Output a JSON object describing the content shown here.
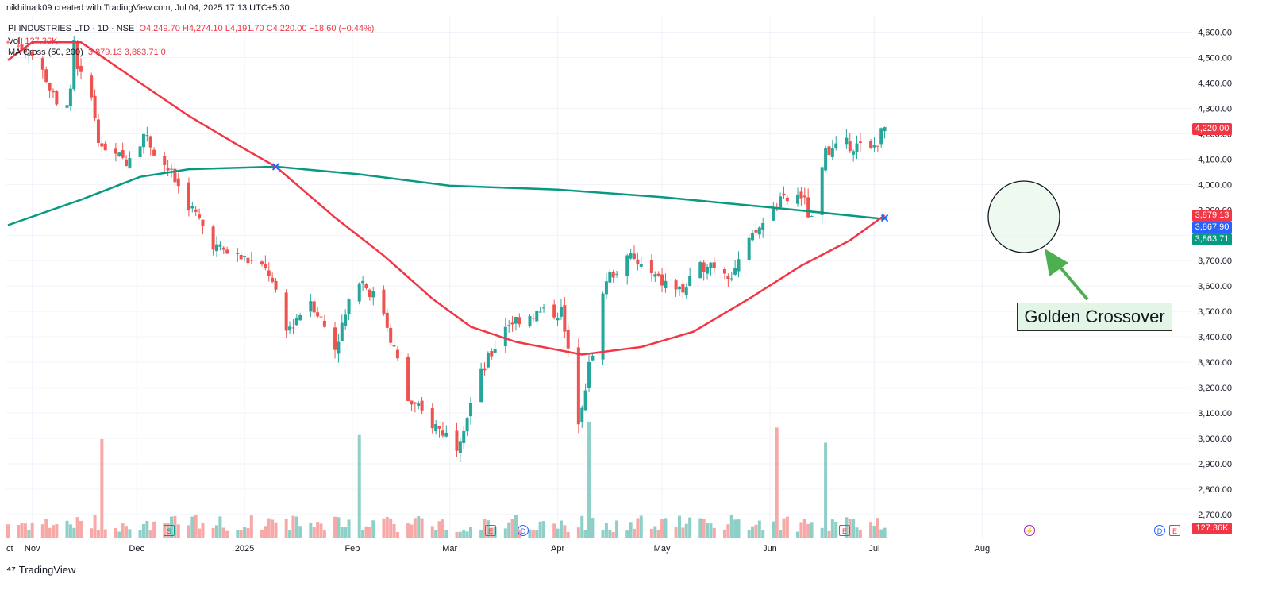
{
  "header": {
    "created_by": "nikhilnaik09 created with TradingView.com, Jul 04, 2025 17:13 UTC+5:30"
  },
  "legend": {
    "symbol": "PI INDUSTRIES LTD · 1D · NSE",
    "ohlc": "O4,249.70 H4,274.10 L4,191.70 C4,220.00 −18.60 (−0.44%)",
    "vol_label": "Vol",
    "vol_value": "127.36K",
    "ma_label": "MA Cross (50, 200)",
    "ma_values": "3,879.13 3,863.71 0"
  },
  "price_tags": {
    "last": "4,220.00",
    "ma50": "3,879.13",
    "cross": "3,867.90",
    "ma200": "3,863.71",
    "volume": "127.36K"
  },
  "annotation": {
    "text": "Golden Crossover"
  },
  "events": {
    "split": "S",
    "earnings": "E",
    "dividend": "D",
    "flash": "⚡"
  },
  "footer": {
    "brand": "TradingView"
  },
  "colors": {
    "up": "#26a69a",
    "down": "#ef5350",
    "ma50": "#f23645",
    "ma200": "#089981",
    "cross": "#2962ff",
    "annotation_arrow": "#4caf50"
  },
  "chart_data": {
    "type": "candlestick",
    "symbol": "PI INDUSTRIES LTD",
    "interval": "1D",
    "exchange": "NSE",
    "ylim": [
      2600,
      4650
    ],
    "y_ticks": [
      "2,700.00",
      "2,800.00",
      "2,900.00",
      "3,000.00",
      "3,100.00",
      "3,200.00",
      "3,300.00",
      "3,400.00",
      "3,500.00",
      "3,600.00",
      "3,700.00",
      "3,800.00",
      "3,900.00",
      "4,000.00",
      "4,100.00",
      "4,200.00",
      "4,300.00",
      "4,400.00",
      "4,500.00",
      "4,600.00"
    ],
    "x_ticks": [
      "ct",
      "Nov",
      "Dec",
      "2025",
      "Feb",
      "Mar",
      "Apr",
      "May",
      "Jun",
      "Jul",
      "Aug"
    ],
    "close_path": [
      {
        "date": "2024-10-25",
        "close": 4560
      },
      {
        "date": "2024-10-31",
        "close": 4530
      },
      {
        "date": "2024-11-05",
        "close": 4420
      },
      {
        "date": "2024-11-08",
        "close": 4300
      },
      {
        "date": "2024-11-12",
        "close": 4350
      },
      {
        "date": "2024-11-13",
        "close": 4550
      },
      {
        "date": "2024-11-14",
        "close": 4440
      },
      {
        "date": "2024-11-18",
        "close": 4340
      },
      {
        "date": "2024-11-21",
        "close": 4120
      },
      {
        "date": "2024-11-28",
        "close": 4100
      },
      {
        "date": "2024-12-03",
        "close": 4200
      },
      {
        "date": "2024-12-10",
        "close": 4060
      },
      {
        "date": "2024-12-17",
        "close": 3900
      },
      {
        "date": "2024-12-24",
        "close": 3750
      },
      {
        "date": "2025-01-02",
        "close": 3700
      },
      {
        "date": "2025-01-08",
        "close": 3650
      },
      {
        "date": "2025-01-13",
        "close": 3420
      },
      {
        "date": "2025-01-20",
        "close": 3550
      },
      {
        "date": "2025-01-27",
        "close": 3360
      },
      {
        "date": "2025-02-03",
        "close": 3640
      },
      {
        "date": "2025-02-10",
        "close": 3500
      },
      {
        "date": "2025-02-17",
        "close": 3150
      },
      {
        "date": "2025-02-24",
        "close": 3060
      },
      {
        "date": "2025-03-03",
        "close": 2980
      },
      {
        "date": "2025-03-10",
        "close": 3250
      },
      {
        "date": "2025-03-17",
        "close": 3450
      },
      {
        "date": "2025-03-24",
        "close": 3490
      },
      {
        "date": "2025-04-02",
        "close": 3500
      },
      {
        "date": "2025-04-07",
        "close": 3080
      },
      {
        "date": "2025-04-10",
        "close": 3280
      },
      {
        "date": "2025-04-15",
        "close": 3630
      },
      {
        "date": "2025-04-22",
        "close": 3710
      },
      {
        "date": "2025-04-30",
        "close": 3620
      },
      {
        "date": "2025-05-07",
        "close": 3580
      },
      {
        "date": "2025-05-14",
        "close": 3700
      },
      {
        "date": "2025-05-21",
        "close": 3650
      },
      {
        "date": "2025-05-28",
        "close": 3810
      },
      {
        "date": "2025-06-03",
        "close": 3920
      },
      {
        "date": "2025-06-10",
        "close": 3960
      },
      {
        "date": "2025-06-13",
        "close": 3850
      },
      {
        "date": "2025-06-17",
        "close": 4120
      },
      {
        "date": "2025-06-24",
        "close": 4160
      },
      {
        "date": "2025-06-30",
        "close": 4130
      },
      {
        "date": "2025-07-04",
        "close": 4220
      }
    ],
    "ma50": [
      {
        "date": "2024-10-25",
        "value": 4490
      },
      {
        "date": "2024-11-01",
        "value": 4560
      },
      {
        "date": "2024-11-15",
        "value": 4560
      },
      {
        "date": "2024-12-02",
        "value": 4400
      },
      {
        "date": "2024-12-16",
        "value": 4270
      },
      {
        "date": "2025-01-01",
        "value": 4140
      },
      {
        "date": "2025-01-10",
        "value": 4070
      },
      {
        "date": "2025-01-27",
        "value": 3870
      },
      {
        "date": "2025-02-10",
        "value": 3720
      },
      {
        "date": "2025-02-24",
        "value": 3550
      },
      {
        "date": "2025-03-07",
        "value": 3440
      },
      {
        "date": "2025-03-20",
        "value": 3380
      },
      {
        "date": "2025-04-08",
        "value": 3330
      },
      {
        "date": "2025-04-25",
        "value": 3360
      },
      {
        "date": "2025-05-10",
        "value": 3420
      },
      {
        "date": "2025-05-26",
        "value": 3550
      },
      {
        "date": "2025-06-10",
        "value": 3680
      },
      {
        "date": "2025-06-24",
        "value": 3780
      },
      {
        "date": "2025-07-04",
        "value": 3879.13
      }
    ],
    "ma200": [
      {
        "date": "2024-10-25",
        "value": 3840
      },
      {
        "date": "2024-11-15",
        "value": 3940
      },
      {
        "date": "2024-12-02",
        "value": 4030
      },
      {
        "date": "2024-12-16",
        "value": 4060
      },
      {
        "date": "2025-01-10",
        "value": 4070
      },
      {
        "date": "2025-02-03",
        "value": 4040
      },
      {
        "date": "2025-03-01",
        "value": 3995
      },
      {
        "date": "2025-04-01",
        "value": 3980
      },
      {
        "date": "2025-05-01",
        "value": 3950
      },
      {
        "date": "2025-06-01",
        "value": 3910
      },
      {
        "date": "2025-07-04",
        "value": 3863.71
      }
    ],
    "crossovers": [
      {
        "type": "death",
        "date": "2025-01-10",
        "value": 4070
      },
      {
        "type": "golden",
        "date": "2025-07-04",
        "value": 3867.9
      }
    ],
    "volume_spikes": [
      {
        "date": "2024-11-21",
        "volume": "high"
      },
      {
        "date": "2025-02-03",
        "volume": "high"
      },
      {
        "date": "2025-04-10",
        "volume": "high"
      },
      {
        "date": "2025-06-03",
        "volume": "high"
      },
      {
        "date": "2025-06-17",
        "volume": "high"
      }
    ]
  }
}
